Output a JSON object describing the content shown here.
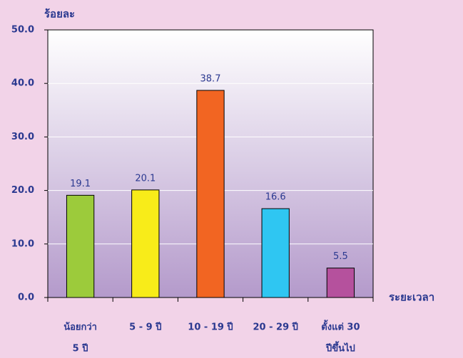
{
  "chart_data": {
    "type": "bar",
    "y_label": "ร้อยละ",
    "x_label": "ระยะเวลา",
    "categories": [
      [
        "น้อยกว่า",
        "5 ปี"
      ],
      [
        "5 - 9 ปี"
      ],
      [
        "10 - 19 ปี"
      ],
      [
        "20 - 29 ปี"
      ],
      [
        "ตั้งแต่ 30",
        "ปีขึ้นไป"
      ]
    ],
    "values": [
      19.1,
      20.1,
      38.7,
      16.6,
      5.5
    ],
    "colors": [
      "#9ccb3b",
      "#f8ec19",
      "#f26522",
      "#2fc6f2",
      "#b5519d"
    ],
    "ylim": [
      0,
      50
    ],
    "yticks": [
      {
        "value": 0,
        "label": "0.0"
      },
      {
        "value": 10,
        "label": "10.0"
      },
      {
        "value": 20,
        "label": "20.0"
      },
      {
        "value": 30,
        "label": "30.0"
      },
      {
        "value": 40,
        "label": "40.0"
      },
      {
        "value": 50,
        "label": "50.0"
      }
    ],
    "grid": true
  }
}
